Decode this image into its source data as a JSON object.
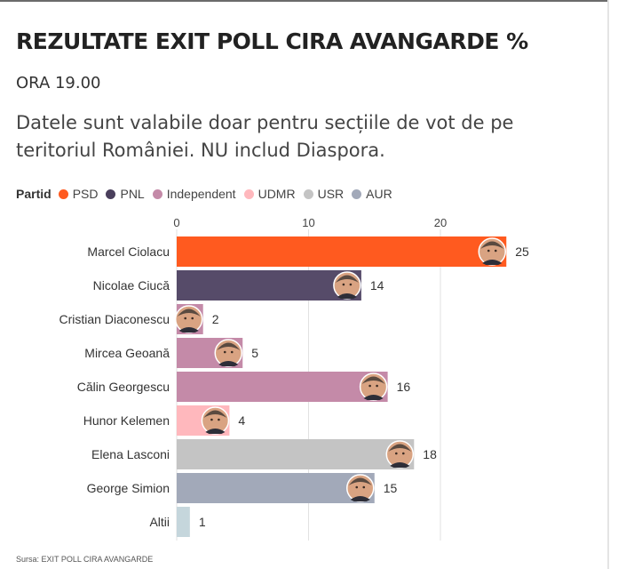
{
  "title": "REZULTATE EXIT POLL CIRA AVANGARDE %",
  "subtitle": "ORA 19.00",
  "description": "Datele sunt valabile doar pentru secțiile de vot de pe teritoriul României. NU includ Diaspora.",
  "legend": {
    "title": "Partid",
    "items": [
      {
        "label": "PSD",
        "color": "#ff5a1f"
      },
      {
        "label": "PNL",
        "color": "#4a3f5c"
      },
      {
        "label": "Independent",
        "color": "#c48aa8"
      },
      {
        "label": "UDMR",
        "color": "#ffb8bd"
      },
      {
        "label": "USR",
        "color": "#c4c4c4"
      },
      {
        "label": "AUR",
        "color": "#a2a9b9"
      }
    ]
  },
  "source": "Sursa: EXIT POLL CIRA AVANGARDE",
  "chart_data": {
    "type": "bar",
    "orientation": "horizontal",
    "categories": [
      "Marcel Ciolacu",
      "Nicolae Ciucă",
      "Cristian Diaconescu",
      "Mircea Geoană",
      "Călin Georgescu",
      "Hunor Kelemen",
      "Elena Lasconi",
      "George Simion",
      "Altii"
    ],
    "values": [
      25,
      14,
      2,
      5,
      16,
      4,
      18,
      15,
      1
    ],
    "parties": [
      "PSD",
      "PNL",
      "Independent",
      "Independent",
      "Independent",
      "UDMR",
      "USR",
      "AUR",
      ""
    ],
    "bar_colors": [
      "#ff5a1f",
      "#564b69",
      "#c48aa8",
      "#c48aa8",
      "#c48aa8",
      "#ffb8bd",
      "#c4c4c4",
      "#a2a9b9",
      "#c5d6dc"
    ],
    "has_photo": [
      true,
      true,
      true,
      true,
      true,
      true,
      true,
      true,
      false
    ],
    "xlim": [
      0,
      25
    ],
    "xticks": [
      0,
      10,
      20
    ],
    "grid": true,
    "legend_position": "top-left"
  }
}
